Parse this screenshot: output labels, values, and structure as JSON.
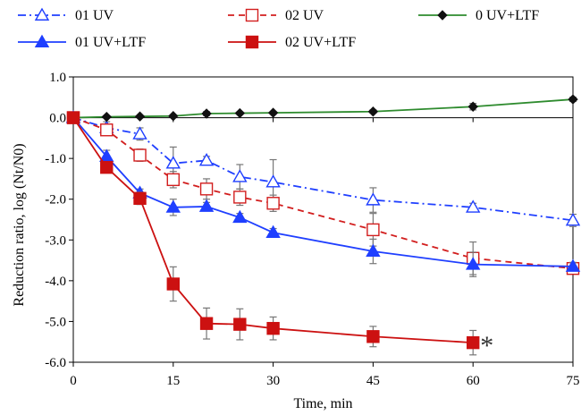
{
  "chart_data": {
    "type": "line",
    "xlabel": "Time, min",
    "ylabel": "Reduction ratio, log (Nt/N0)",
    "xlim": [
      0,
      75
    ],
    "ylim": [
      -6,
      1
    ],
    "xticks": [
      0,
      15,
      30,
      45,
      60,
      75
    ],
    "xtick_labels": [
      "0",
      "15",
      "30",
      "45",
      "60",
      "75"
    ],
    "yticks": [
      1,
      0,
      -1,
      -2,
      -3,
      -4,
      -5,
      -6
    ],
    "ytick_labels": [
      "1.0",
      "0.0",
      "-1.0",
      "-2.0",
      "-3.0",
      "-4.0",
      "-5.0",
      "-6.0"
    ],
    "legend_position": "top",
    "annotation": {
      "text": "*",
      "x": 60,
      "y": -5.5
    },
    "series": [
      {
        "name": "01 UV",
        "color": "#1f3fff",
        "line_style": "dash-dot",
        "marker": "open-triangle",
        "x": [
          0,
          5,
          10,
          15,
          20,
          25,
          30,
          45,
          60,
          75
        ],
        "y": [
          0,
          -0.25,
          -0.4,
          -1.12,
          -1.05,
          -1.45,
          -1.58,
          -2.02,
          -2.2,
          -2.52
        ],
        "error": [
          0.05,
          0.15,
          0.15,
          0.4,
          0.1,
          0.3,
          0.55,
          0.3,
          0.1,
          0.15
        ]
      },
      {
        "name": "02 UV",
        "color": "#d21e1e",
        "line_style": "dashed",
        "marker": "open-square",
        "x": [
          0,
          5,
          10,
          15,
          20,
          25,
          30,
          45,
          60,
          75
        ],
        "y": [
          0,
          -0.3,
          -0.92,
          -1.52,
          -1.75,
          -1.95,
          -2.1,
          -2.75,
          -3.45,
          -3.7
        ],
        "error": [
          0.05,
          0.1,
          0.15,
          0.2,
          0.25,
          0.2,
          0.2,
          0.4,
          0.4,
          0.1
        ]
      },
      {
        "name": "0 UV+LTF",
        "color": "#2e8b2e",
        "line_style": "solid",
        "marker": "filled-diamond",
        "x": [
          0,
          5,
          10,
          15,
          20,
          25,
          30,
          45,
          60,
          75
        ],
        "y": [
          0,
          0.02,
          0.03,
          0.04,
          0.1,
          0.11,
          0.12,
          0.15,
          0.27,
          0.45
        ],
        "error": [
          0,
          0,
          0,
          0,
          0.05,
          0.03,
          0.03,
          0.04,
          0.08,
          0.05
        ]
      },
      {
        "name": "01 UV+LTF",
        "color": "#1f3fff",
        "line_style": "solid",
        "marker": "filled-triangle",
        "x": [
          0,
          5,
          10,
          15,
          20,
          25,
          30,
          45,
          60,
          75
        ],
        "y": [
          0,
          -0.95,
          -1.85,
          -2.2,
          -2.18,
          -2.45,
          -2.82,
          -3.28,
          -3.6,
          -3.65
        ],
        "error": [
          0.05,
          0.15,
          0.1,
          0.2,
          0.1,
          0.1,
          0.1,
          0.3,
          0.3,
          0.1
        ]
      },
      {
        "name": "02 UV+LTF",
        "color": "#cc1111",
        "line_style": "solid",
        "marker": "filled-square",
        "x": [
          0,
          5,
          10,
          15,
          20,
          25,
          30,
          45,
          60
        ],
        "y": [
          0,
          -1.22,
          -1.98,
          -4.08,
          -5.05,
          -5.07,
          -5.17,
          -5.37,
          -5.52
        ],
        "error": [
          0.05,
          0.1,
          0.15,
          0.42,
          0.38,
          0.38,
          0.28,
          0.25,
          0.3
        ]
      }
    ]
  }
}
